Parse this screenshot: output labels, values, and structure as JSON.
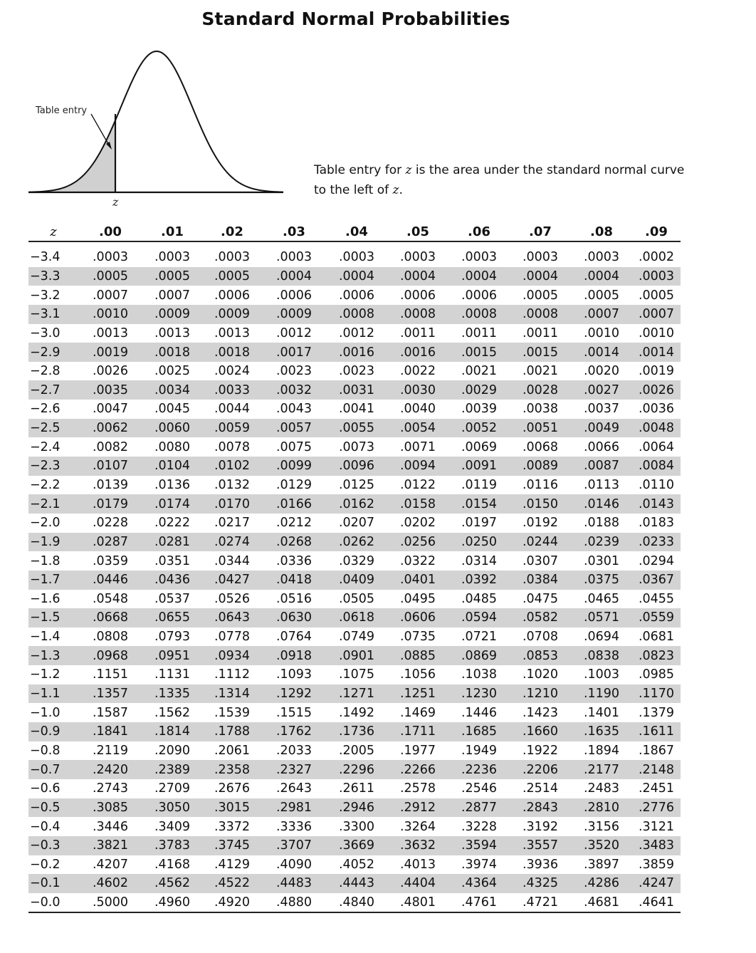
{
  "title": "Standard Normal Probabilities",
  "figure": {
    "callout_label": "Table entry",
    "axis_label": "z"
  },
  "note": {
    "line1_prefix": "Table entry for ",
    "line1_var": "z",
    "line1_suffix": " is the area under the standard normal curve",
    "line2_prefix": "to the left of ",
    "line2_var": "z",
    "line2_suffix": "."
  },
  "table": {
    "z_header": "z",
    "columns": [
      ".00",
      ".01",
      ".02",
      ".03",
      ".04",
      ".05",
      ".06",
      ".07",
      ".08",
      ".09"
    ],
    "rows": [
      {
        "z": "−3.4",
        "v": [
          ".0003",
          ".0003",
          ".0003",
          ".0003",
          ".0003",
          ".0003",
          ".0003",
          ".0003",
          ".0003",
          ".0002"
        ]
      },
      {
        "z": "−3.3",
        "v": [
          ".0005",
          ".0005",
          ".0005",
          ".0004",
          ".0004",
          ".0004",
          ".0004",
          ".0004",
          ".0004",
          ".0003"
        ]
      },
      {
        "z": "−3.2",
        "v": [
          ".0007",
          ".0007",
          ".0006",
          ".0006",
          ".0006",
          ".0006",
          ".0006",
          ".0005",
          ".0005",
          ".0005"
        ]
      },
      {
        "z": "−3.1",
        "v": [
          ".0010",
          ".0009",
          ".0009",
          ".0009",
          ".0008",
          ".0008",
          ".0008",
          ".0008",
          ".0007",
          ".0007"
        ]
      },
      {
        "z": "−3.0",
        "v": [
          ".0013",
          ".0013",
          ".0013",
          ".0012",
          ".0012",
          ".0011",
          ".0011",
          ".0011",
          ".0010",
          ".0010"
        ]
      },
      {
        "z": "−2.9",
        "v": [
          ".0019",
          ".0018",
          ".0018",
          ".0017",
          ".0016",
          ".0016",
          ".0015",
          ".0015",
          ".0014",
          ".0014"
        ]
      },
      {
        "z": "−2.8",
        "v": [
          ".0026",
          ".0025",
          ".0024",
          ".0023",
          ".0023",
          ".0022",
          ".0021",
          ".0021",
          ".0020",
          ".0019"
        ]
      },
      {
        "z": "−2.7",
        "v": [
          ".0035",
          ".0034",
          ".0033",
          ".0032",
          ".0031",
          ".0030",
          ".0029",
          ".0028",
          ".0027",
          ".0026"
        ]
      },
      {
        "z": "−2.6",
        "v": [
          ".0047",
          ".0045",
          ".0044",
          ".0043",
          ".0041",
          ".0040",
          ".0039",
          ".0038",
          ".0037",
          ".0036"
        ]
      },
      {
        "z": "−2.5",
        "v": [
          ".0062",
          ".0060",
          ".0059",
          ".0057",
          ".0055",
          ".0054",
          ".0052",
          ".0051",
          ".0049",
          ".0048"
        ]
      },
      {
        "z": "−2.4",
        "v": [
          ".0082",
          ".0080",
          ".0078",
          ".0075",
          ".0073",
          ".0071",
          ".0069",
          ".0068",
          ".0066",
          ".0064"
        ]
      },
      {
        "z": "−2.3",
        "v": [
          ".0107",
          ".0104",
          ".0102",
          ".0099",
          ".0096",
          ".0094",
          ".0091",
          ".0089",
          ".0087",
          ".0084"
        ]
      },
      {
        "z": "−2.2",
        "v": [
          ".0139",
          ".0136",
          ".0132",
          ".0129",
          ".0125",
          ".0122",
          ".0119",
          ".0116",
          ".0113",
          ".0110"
        ]
      },
      {
        "z": "−2.1",
        "v": [
          ".0179",
          ".0174",
          ".0170",
          ".0166",
          ".0162",
          ".0158",
          ".0154",
          ".0150",
          ".0146",
          ".0143"
        ]
      },
      {
        "z": "−2.0",
        "v": [
          ".0228",
          ".0222",
          ".0217",
          ".0212",
          ".0207",
          ".0202",
          ".0197",
          ".0192",
          ".0188",
          ".0183"
        ]
      },
      {
        "z": "−1.9",
        "v": [
          ".0287",
          ".0281",
          ".0274",
          ".0268",
          ".0262",
          ".0256",
          ".0250",
          ".0244",
          ".0239",
          ".0233"
        ]
      },
      {
        "z": "−1.8",
        "v": [
          ".0359",
          ".0351",
          ".0344",
          ".0336",
          ".0329",
          ".0322",
          ".0314",
          ".0307",
          ".0301",
          ".0294"
        ]
      },
      {
        "z": "−1.7",
        "v": [
          ".0446",
          ".0436",
          ".0427",
          ".0418",
          ".0409",
          ".0401",
          ".0392",
          ".0384",
          ".0375",
          ".0367"
        ]
      },
      {
        "z": "−1.6",
        "v": [
          ".0548",
          ".0537",
          ".0526",
          ".0516",
          ".0505",
          ".0495",
          ".0485",
          ".0475",
          ".0465",
          ".0455"
        ]
      },
      {
        "z": "−1.5",
        "v": [
          ".0668",
          ".0655",
          ".0643",
          ".0630",
          ".0618",
          ".0606",
          ".0594",
          ".0582",
          ".0571",
          ".0559"
        ]
      },
      {
        "z": "−1.4",
        "v": [
          ".0808",
          ".0793",
          ".0778",
          ".0764",
          ".0749",
          ".0735",
          ".0721",
          ".0708",
          ".0694",
          ".0681"
        ]
      },
      {
        "z": "−1.3",
        "v": [
          ".0968",
          ".0951",
          ".0934",
          ".0918",
          ".0901",
          ".0885",
          ".0869",
          ".0853",
          ".0838",
          ".0823"
        ]
      },
      {
        "z": "−1.2",
        "v": [
          ".1151",
          ".1131",
          ".1112",
          ".1093",
          ".1075",
          ".1056",
          ".1038",
          ".1020",
          ".1003",
          ".0985"
        ]
      },
      {
        "z": "−1.1",
        "v": [
          ".1357",
          ".1335",
          ".1314",
          ".1292",
          ".1271",
          ".1251",
          ".1230",
          ".1210",
          ".1190",
          ".1170"
        ]
      },
      {
        "z": "−1.0",
        "v": [
          ".1587",
          ".1562",
          ".1539",
          ".1515",
          ".1492",
          ".1469",
          ".1446",
          ".1423",
          ".1401",
          ".1379"
        ]
      },
      {
        "z": "−0.9",
        "v": [
          ".1841",
          ".1814",
          ".1788",
          ".1762",
          ".1736",
          ".1711",
          ".1685",
          ".1660",
          ".1635",
          ".1611"
        ]
      },
      {
        "z": "−0.8",
        "v": [
          ".2119",
          ".2090",
          ".2061",
          ".2033",
          ".2005",
          ".1977",
          ".1949",
          ".1922",
          ".1894",
          ".1867"
        ]
      },
      {
        "z": "−0.7",
        "v": [
          ".2420",
          ".2389",
          ".2358",
          ".2327",
          ".2296",
          ".2266",
          ".2236",
          ".2206",
          ".2177",
          ".2148"
        ]
      },
      {
        "z": "−0.6",
        "v": [
          ".2743",
          ".2709",
          ".2676",
          ".2643",
          ".2611",
          ".2578",
          ".2546",
          ".2514",
          ".2483",
          ".2451"
        ]
      },
      {
        "z": "−0.5",
        "v": [
          ".3085",
          ".3050",
          ".3015",
          ".2981",
          ".2946",
          ".2912",
          ".2877",
          ".2843",
          ".2810",
          ".2776"
        ]
      },
      {
        "z": "−0.4",
        "v": [
          ".3446",
          ".3409",
          ".3372",
          ".3336",
          ".3300",
          ".3264",
          ".3228",
          ".3192",
          ".3156",
          ".3121"
        ]
      },
      {
        "z": "−0.3",
        "v": [
          ".3821",
          ".3783",
          ".3745",
          ".3707",
          ".3669",
          ".3632",
          ".3594",
          ".3557",
          ".3520",
          ".3483"
        ]
      },
      {
        "z": "−0.2",
        "v": [
          ".4207",
          ".4168",
          ".4129",
          ".4090",
          ".4052",
          ".4013",
          ".3974",
          ".3936",
          ".3897",
          ".3859"
        ]
      },
      {
        "z": "−0.1",
        "v": [
          ".4602",
          ".4562",
          ".4522",
          ".4483",
          ".4443",
          ".4404",
          ".4364",
          ".4325",
          ".4286",
          ".4247"
        ]
      },
      {
        "z": "−0.0",
        "v": [
          ".5000",
          ".4960",
          ".4920",
          ".4880",
          ".4840",
          ".4801",
          ".4761",
          ".4721",
          ".4681",
          ".4641"
        ]
      }
    ]
  }
}
